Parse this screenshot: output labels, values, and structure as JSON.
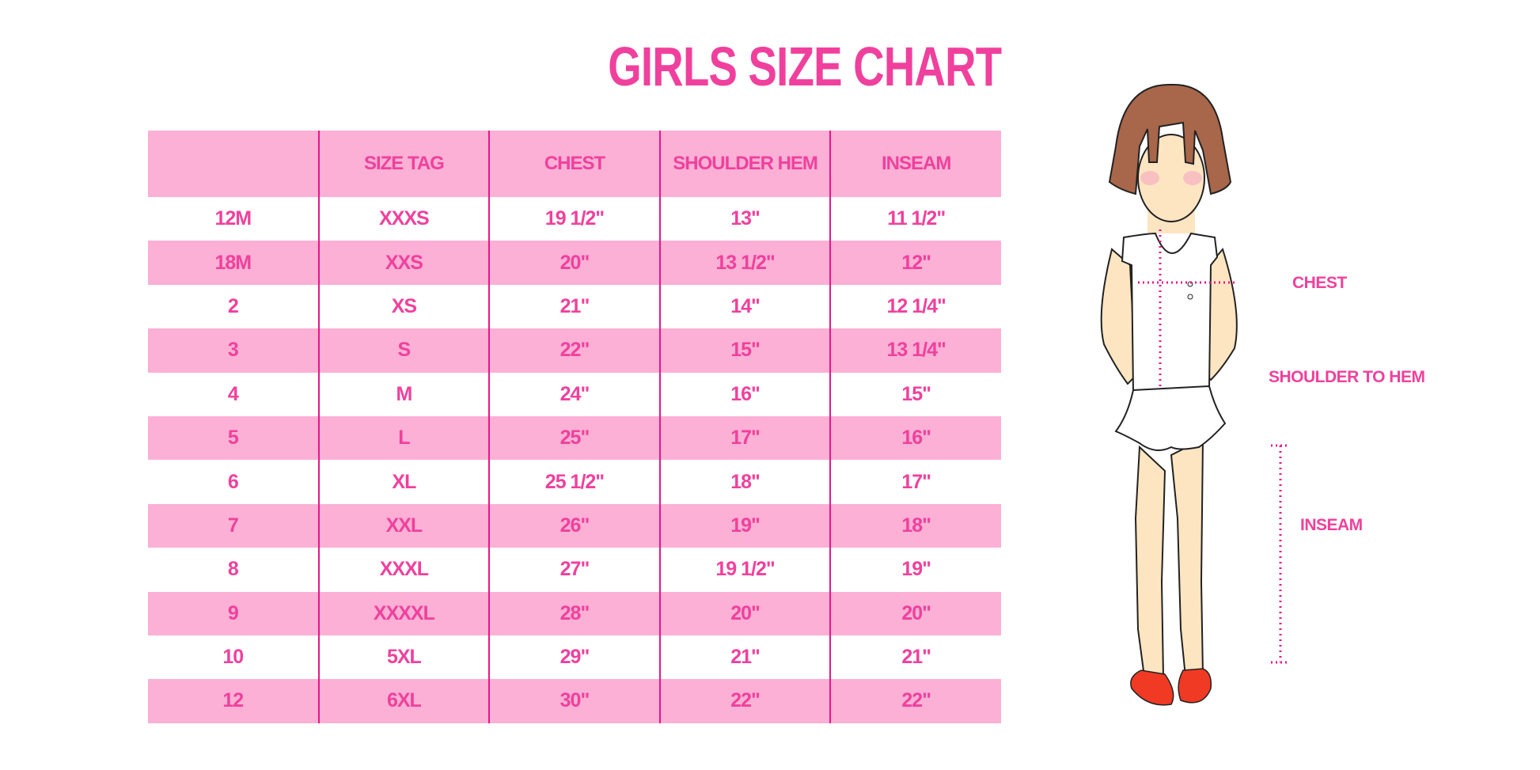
{
  "title": "GIRLS SIZE CHART",
  "colors": {
    "accent": "#f0409d",
    "row_band": "#fcb0d5",
    "divider": "#e8168c"
  },
  "table": {
    "headers": [
      "",
      "SIZE TAG",
      "CHEST",
      "SHOULDER HEM",
      "INSEAM"
    ],
    "rows": [
      [
        "12M",
        "XXXS",
        "19 1/2\"",
        "13\"",
        "11 1/2\""
      ],
      [
        "18M",
        "XXS",
        "20\"",
        "13 1/2\"",
        "12\""
      ],
      [
        "2",
        "XS",
        "21\"",
        "14\"",
        "12 1/4\""
      ],
      [
        "3",
        "S",
        "22\"",
        "15\"",
        "13 1/4\""
      ],
      [
        "4",
        "M",
        "24\"",
        "16\"",
        "15\""
      ],
      [
        "5",
        "L",
        "25\"",
        "17\"",
        "16\""
      ],
      [
        "6",
        "XL",
        "25 1/2\"",
        "18\"",
        "17\""
      ],
      [
        "7",
        "XXL",
        "26\"",
        "19\"",
        "18\""
      ],
      [
        "8",
        "XXXL",
        "27\"",
        "19 1/2\"",
        "19\""
      ],
      [
        "9",
        "XXXXL",
        "28\"",
        "20\"",
        "20\""
      ],
      [
        "10",
        "5XL",
        "29\"",
        "21\"",
        "21\""
      ],
      [
        "12",
        "6XL",
        "30\"",
        "22\"",
        "22\""
      ]
    ]
  },
  "figure": {
    "labels": {
      "chest": "CHEST",
      "shoulder_to_hem": "SHOULDER TO HEM",
      "inseam": "INSEAM"
    }
  }
}
